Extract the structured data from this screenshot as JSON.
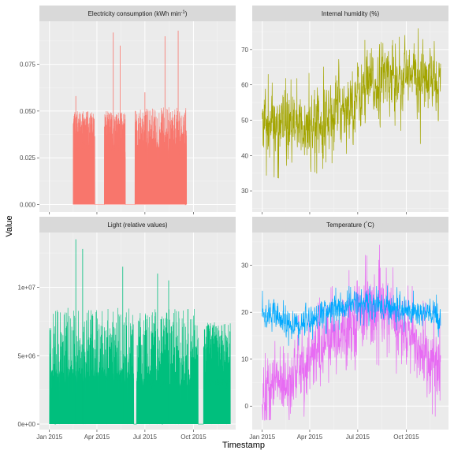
{
  "chart_data": {
    "type": "line",
    "xlabel": "Timestamp",
    "ylabel": "Value",
    "x_ticks": [
      "Jan 2015",
      "Apr 2015",
      "Jul 2015",
      "Oct 2015"
    ],
    "x_tick_values": [
      "2015-01-01",
      "2015-04-01",
      "2015-07-01",
      "2015-10-01"
    ],
    "grid": true,
    "legend": "none",
    "panels": [
      {
        "title": "Electricity consumption (kWh min",
        "title_sup": "-1",
        "title_end": ")",
        "ylim": [
          -0.004,
          0.098
        ],
        "y_ticks": [
          0,
          0.025,
          0.05,
          0.075
        ],
        "y_tick_labels": [
          "0.000",
          "0.025",
          "0.050",
          "0.075"
        ],
        "x_range": [
          "2014-12-13",
          "2015-12-20"
        ],
        "series": [
          {
            "color": "#F8766D",
            "style": "filled_spikes",
            "segments": [
              {
                "x": [
                  "2015-02-15",
                  "2015-03-28"
                ],
                "base": 0.0,
                "typical_low": 0.03,
                "typical_high": 0.05
              },
              {
                "x": [
                  "2015-04-15",
                  "2015-05-25"
                ],
                "base": 0.0,
                "typical_low": 0.03,
                "typical_high": 0.05
              },
              {
                "x": [
                  "2015-06-12",
                  "2015-09-18"
                ],
                "base": 0.0,
                "typical_low": 0.03,
                "typical_high": 0.052
              }
            ],
            "peaks": [
              {
                "x": "2015-02-20",
                "y": 0.058
              },
              {
                "x": "2015-05-02",
                "y": 0.092
              },
              {
                "x": "2015-05-15",
                "y": 0.085
              },
              {
                "x": "2015-07-01",
                "y": 0.06
              },
              {
                "x": "2015-08-08",
                "y": 0.09
              },
              {
                "x": "2015-09-02",
                "y": 0.093
              }
            ]
          }
        ]
      },
      {
        "title": "Internal humidity (%)",
        "ylim": [
          24,
          78
        ],
        "y_ticks": [
          30,
          40,
          50,
          60,
          70
        ],
        "y_tick_labels": [
          "30",
          "40",
          "50",
          "60",
          "70"
        ],
        "x_range": [
          "2014-12-13",
          "2015-12-20"
        ],
        "series": [
          {
            "color": "#A3A500",
            "style": "noisy_line",
            "x_start": "2015-01-01",
            "x_end": "2015-12-05",
            "trend": [
              {
                "x": "2015-01-01",
                "y": 49
              },
              {
                "x": "2015-03-01",
                "y": 47
              },
              {
                "x": "2015-05-01",
                "y": 51
              },
              {
                "x": "2015-07-01",
                "y": 57
              },
              {
                "x": "2015-09-01",
                "y": 63
              },
              {
                "x": "2015-10-15",
                "y": 62
              },
              {
                "x": "2015-12-05",
                "y": 60
              }
            ],
            "min": 26,
            "max": 76
          }
        ]
      },
      {
        "title": "Light (relative values)",
        "ylim": [
          -400000,
          14000000
        ],
        "y_ticks": [
          0,
          5000000,
          10000000
        ],
        "y_tick_labels": [
          "0e+00",
          "5e+06",
          "1e+07"
        ],
        "x_range": [
          "2014-12-13",
          "2015-12-20"
        ],
        "series": [
          {
            "color": "#00BF7D",
            "style": "filled_spikes",
            "segments": [
              {
                "x": [
                  "2015-01-01",
                  "2015-06-10"
                ],
                "base": 0,
                "typical_low": 3500000,
                "typical_high": 8500000
              },
              {
                "x": [
                  "2015-06-15",
                  "2015-10-10"
                ],
                "base": 0,
                "typical_low": 3000000,
                "typical_high": 8500000
              },
              {
                "x": [
                  "2015-10-20",
                  "2015-12-10"
                ],
                "base": 0,
                "typical_low": 3000000,
                "typical_high": 7500000
              }
            ],
            "peaks": [
              {
                "x": "2015-02-20",
                "y": 13500000
              },
              {
                "x": "2015-03-05",
                "y": 12800000
              },
              {
                "x": "2015-05-20",
                "y": 11500000
              },
              {
                "x": "2015-07-25",
                "y": 11000000
              },
              {
                "x": "2015-08-15",
                "y": 10500000
              }
            ]
          }
        ]
      },
      {
        "title": "Temperature (",
        "title_sup": "°",
        "title_end": "C)",
        "ylim": [
          -5,
          37
        ],
        "y_ticks": [
          0,
          10,
          20,
          30
        ],
        "y_tick_labels": [
          "0",
          "10",
          "20",
          "30"
        ],
        "x_range": [
          "2014-12-13",
          "2015-12-20"
        ],
        "series": [
          {
            "color": "#E76BF3",
            "style": "noisy_line",
            "x_start": "2015-01-01",
            "x_end": "2015-12-05",
            "trend": [
              {
                "x": "2015-01-01",
                "y": 3
              },
              {
                "x": "2015-03-01",
                "y": 7
              },
              {
                "x": "2015-05-01",
                "y": 13
              },
              {
                "x": "2015-07-15",
                "y": 21
              },
              {
                "x": "2015-09-01",
                "y": 19
              },
              {
                "x": "2015-10-15",
                "y": 13
              },
              {
                "x": "2015-12-05",
                "y": 8
              }
            ],
            "min": -3,
            "max": 36
          },
          {
            "color": "#00A9FF",
            "style": "noisy_line",
            "x_start": "2015-01-01",
            "x_end": "2015-12-05",
            "trend": [
              {
                "x": "2015-01-01",
                "y": 20
              },
              {
                "x": "2015-03-01",
                "y": 17
              },
              {
                "x": "2015-05-01",
                "y": 20
              },
              {
                "x": "2015-07-01",
                "y": 22
              },
              {
                "x": "2015-09-01",
                "y": 21
              },
              {
                "x": "2015-10-15",
                "y": 20
              },
              {
                "x": "2015-12-05",
                "y": 19
              }
            ],
            "min": 10,
            "max": 26
          }
        ]
      }
    ]
  }
}
